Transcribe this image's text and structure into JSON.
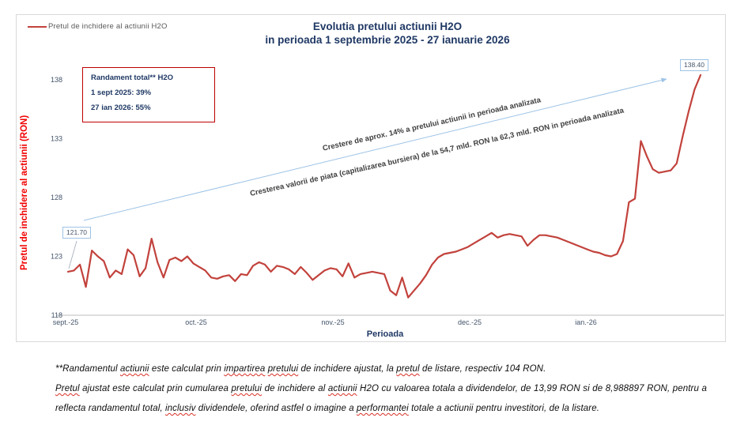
{
  "chart_data": {
    "type": "line",
    "title_line1": "Evolutia pretului actiunii H2O",
    "title_line2": "in perioada 1 septembrie 2025 - 27 ianuarie 2026",
    "legend": "Pretul de inchidere al actiunii H2O",
    "ylabel": "Pretul de inchidere al actiunii (RON)",
    "xlabel": "Perioada",
    "ylim": [
      118,
      140
    ],
    "y_ticks": [
      138,
      133,
      128,
      123,
      118
    ],
    "x_labels": [
      "sept.-25",
      "oct.-25",
      "nov.-25",
      "dec.-25",
      "ian.-26"
    ],
    "grid": "off",
    "legend_position": "top-left",
    "line_color": "#c2423c",
    "arrow_color": "#9dc3e6",
    "start_label": "121.70",
    "end_label": "138.40",
    "values": [
      121.7,
      121.8,
      122.3,
      120.4,
      123.5,
      123.0,
      122.6,
      121.2,
      121.8,
      121.5,
      123.6,
      123.1,
      121.3,
      122.0,
      124.5,
      122.5,
      121.2,
      122.7,
      122.9,
      122.6,
      123.0,
      122.4,
      122.1,
      121.8,
      121.2,
      121.1,
      121.3,
      121.4,
      120.9,
      121.5,
      121.4,
      122.2,
      122.5,
      122.3,
      121.7,
      122.2,
      122.1,
      121.9,
      121.5,
      122.1,
      121.6,
      121.0,
      121.4,
      121.8,
      122.0,
      121.9,
      121.3,
      122.4,
      121.2,
      121.5,
      121.6,
      121.7,
      121.6,
      121.5,
      120.1,
      119.7,
      121.2,
      119.5,
      120.1,
      120.7,
      121.4,
      122.3,
      122.9,
      123.2,
      123.3,
      123.4,
      123.6,
      123.8,
      124.1,
      124.4,
      124.7,
      125.0,
      124.6,
      124.8,
      124.9,
      124.8,
      124.7,
      123.9,
      124.4,
      124.8,
      124.8,
      124.7,
      124.6,
      124.4,
      124.2,
      124.0,
      123.8,
      123.6,
      123.4,
      123.3,
      123.1,
      123.0,
      123.2,
      124.3,
      127.6,
      127.9,
      132.8,
      131.5,
      130.4,
      130.1,
      130.2,
      130.3,
      130.9,
      133.2,
      135.3,
      137.2,
      138.4
    ],
    "annotation1": "Crestere de aprox. 14% a pretului actiunii in perioada analizata",
    "annotation2": "Cresterea valorii de piata (capitalizarea bursiera) de la 54,7 mld.  RON la 62,3 mld. RON in perioada analizata"
  },
  "randament_box": {
    "line1": "Randament total** H2O",
    "line2": "1 sept 2025: 39%",
    "line3": "27 ian 2026: 55%"
  },
  "footnote": {
    "segments": [
      {
        "t": "**Randamentul "
      },
      {
        "t": "actiunii",
        "sp": true
      },
      {
        "t": " este calculat prin "
      },
      {
        "t": "impartirea",
        "sp": true
      },
      {
        "t": " "
      },
      {
        "t": "pretului",
        "sp": true
      },
      {
        "t": " de inchidere ajustat, la "
      },
      {
        "t": "pretul",
        "sp": true
      },
      {
        "t": " de listare, respectiv 104 RON.",
        "br": true
      },
      {
        "t": "Pretul",
        "sp": true
      },
      {
        "t": " ajustat este calculat prin cumularea "
      },
      {
        "t": "pretului",
        "sp": true
      },
      {
        "t": " de inchidere al "
      },
      {
        "t": "actiunii",
        "sp": true
      },
      {
        "t": " H2O cu valoarea totala a dividendelor, de 13,99 RON si de 8,988897 RON, pentru a reflecta randamentul total, "
      },
      {
        "t": "inclusiv",
        "sp": true
      },
      {
        "t": " dividendele, oferind astfel o imagine a "
      },
      {
        "t": "performantei",
        "sp": true
      },
      {
        "t": " totale a actiunii pentru investitori, de la listare."
      }
    ]
  }
}
